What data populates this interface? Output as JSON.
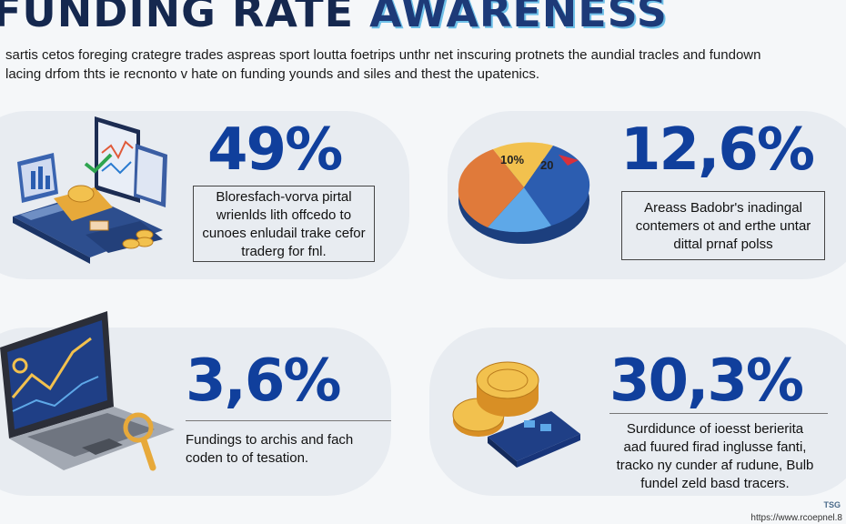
{
  "header": {
    "title_part1": "FUNDING RATE",
    "title_part2": "AWARENESS"
  },
  "intro": {
    "line1": "sartis cetos foreging crategre trades aspreas sport loutta foetrips unthr net inscuring protnets the aundial tracles and fundown",
    "line2": "lacing drfom thts ie recnonto v hate on funding younds and siles and thest the upatenics."
  },
  "cards": [
    {
      "stat": "49%",
      "lines": [
        "Bloresfach-vorva pirtal",
        "wrienlds lith offcedo to",
        "cunoes enludail trake cefor",
        "traderg for fnl."
      ]
    },
    {
      "stat": "12,6%",
      "lines": [
        "Areass Badobr's inadingal",
        "contemers ot and erthe untar",
        "dittal prnaf polss"
      ],
      "pie_labels": [
        "10%",
        "20"
      ]
    },
    {
      "stat": "3,6%",
      "lines": [
        "Fundings to archis and fach",
        "coden to of tesation."
      ]
    },
    {
      "stat": "30,3%",
      "lines": [
        "Surdidunce of ioesst berierita",
        "aad fuured firad inglusse fanti,",
        "tracko ny cunder af rudune, Bulb",
        "fundel zeld basd tracers."
      ]
    }
  ],
  "footer": {
    "logo": "TSG",
    "url": "https://www.rcoepnel.8"
  },
  "colors": {
    "stat_blue": "#103f9c",
    "card_bg": "#e8ecf1",
    "coin_gold": "#e7a93a"
  }
}
